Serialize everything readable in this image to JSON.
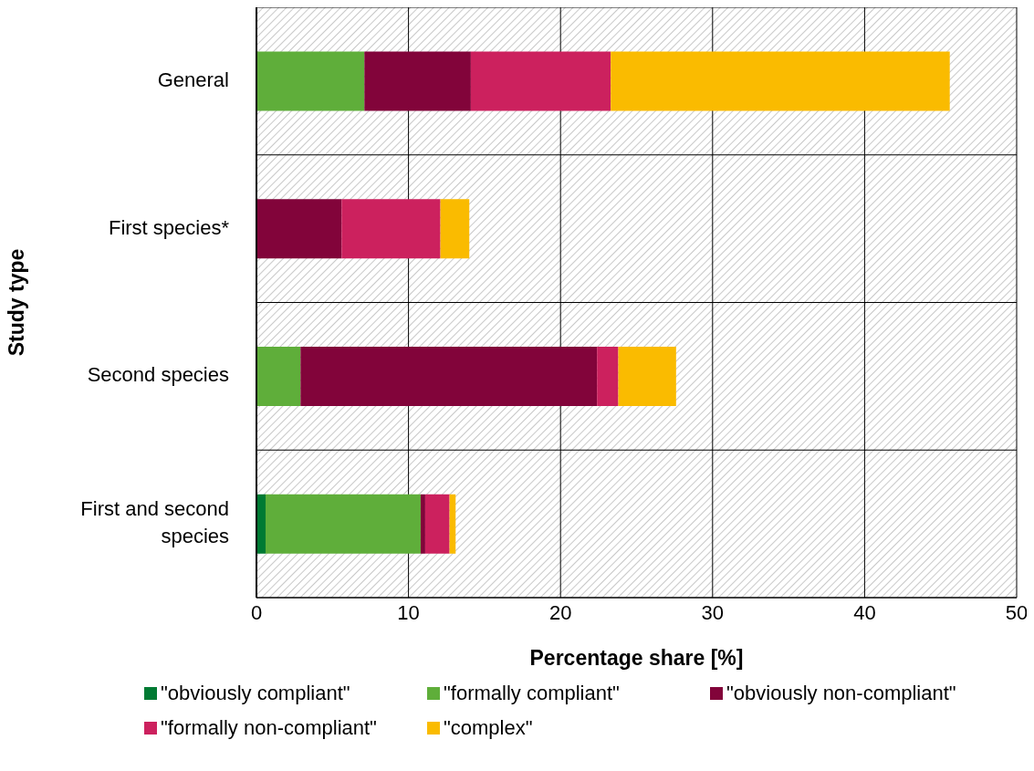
{
  "chart_data": {
    "type": "bar",
    "orientation": "horizontal",
    "stacked": true,
    "xlabel": "Percentage share [%]",
    "ylabel": "Study type",
    "categories": [
      "General",
      "First species*",
      "Second species",
      "First and second species"
    ],
    "series": [
      {
        "name": "\"obviously compliant\"",
        "color": "#007a33",
        "values": [
          0,
          0,
          0,
          0.6
        ]
      },
      {
        "name": "\"formally compliant\"",
        "color": "#5fae3a",
        "values": [
          7.1,
          0,
          2.9,
          10.2
        ]
      },
      {
        "name": "\"obviously non-compliant\"",
        "color": "#82043a",
        "values": [
          7.0,
          5.6,
          19.5,
          0.3
        ]
      },
      {
        "name": "\"formally non-compliant\"",
        "color": "#cc215e",
        "values": [
          9.2,
          6.5,
          1.4,
          1.6
        ]
      },
      {
        "name": "\"complex\"",
        "color": "#fabb00",
        "values": [
          22.3,
          1.9,
          3.8,
          0.4
        ]
      }
    ],
    "xlim": [
      0,
      50
    ],
    "xticks": [
      0,
      10,
      20,
      30,
      40,
      50
    ],
    "grid": true,
    "legend": "bottom"
  }
}
